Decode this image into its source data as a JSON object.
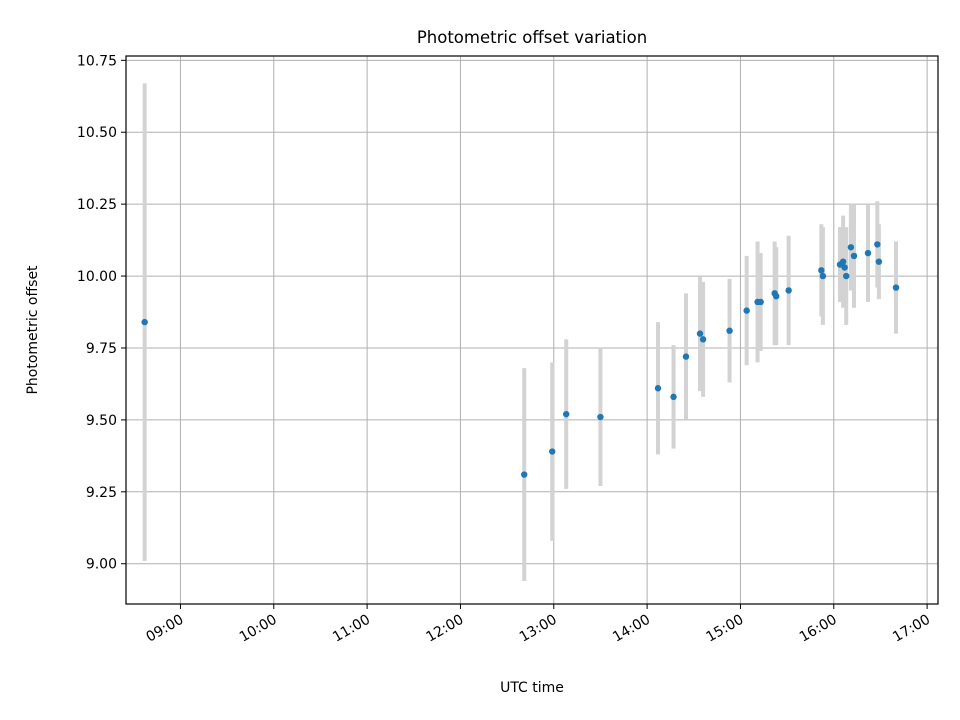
{
  "chart_data": {
    "type": "scatter",
    "title": "Photometric offset variation",
    "xlabel": "UTC time",
    "ylabel": "Photometric offset",
    "xlim": [
      "08:25",
      "17:07"
    ],
    "ylim": [
      8.86,
      10.765
    ],
    "grid": true,
    "colors": {
      "point": "#1f77b4",
      "errorbar": "#d3d3d3",
      "grid": "#b0b0b0"
    },
    "x_ticks": [
      "09:00",
      "10:00",
      "11:00",
      "12:00",
      "13:00",
      "14:00",
      "15:00",
      "16:00",
      "17:00"
    ],
    "y_ticks": [
      "9.00",
      "9.25",
      "9.50",
      "9.75",
      "10.00",
      "10.25",
      "10.50",
      "10.75"
    ],
    "points": [
      {
        "x": "08:37",
        "y": 9.84,
        "yerr": 0.83
      },
      {
        "x": "12:41",
        "y": 9.31,
        "yerr": 0.37
      },
      {
        "x": "12:59",
        "y": 9.39,
        "yerr": 0.31
      },
      {
        "x": "13:08",
        "y": 9.52,
        "yerr": 0.26
      },
      {
        "x": "13:30",
        "y": 9.51,
        "yerr": 0.24
      },
      {
        "x": "14:07",
        "y": 9.61,
        "yerr": 0.23
      },
      {
        "x": "14:17",
        "y": 9.58,
        "yerr": 0.18
      },
      {
        "x": "14:25",
        "y": 9.72,
        "yerr": 0.22
      },
      {
        "x": "14:34",
        "y": 9.8,
        "yerr": 0.2
      },
      {
        "x": "14:36",
        "y": 9.78,
        "yerr": 0.2
      },
      {
        "x": "14:53",
        "y": 9.81,
        "yerr": 0.18
      },
      {
        "x": "15:04",
        "y": 9.88,
        "yerr": 0.19
      },
      {
        "x": "15:11",
        "y": 9.91,
        "yerr": 0.21
      },
      {
        "x": "15:13",
        "y": 9.91,
        "yerr": 0.17
      },
      {
        "x": "15:22",
        "y": 9.94,
        "yerr": 0.18
      },
      {
        "x": "15:23",
        "y": 9.93,
        "yerr": 0.17
      },
      {
        "x": "15:31",
        "y": 9.95,
        "yerr": 0.19
      },
      {
        "x": "15:52",
        "y": 10.02,
        "yerr": 0.16
      },
      {
        "x": "15:53",
        "y": 10.0,
        "yerr": 0.17
      },
      {
        "x": "16:04",
        "y": 10.04,
        "yerr": 0.13
      },
      {
        "x": "16:06",
        "y": 10.05,
        "yerr": 0.16
      },
      {
        "x": "16:07",
        "y": 10.03,
        "yerr": 0.11
      },
      {
        "x": "16:08",
        "y": 10.0,
        "yerr": 0.17
      },
      {
        "x": "16:11",
        "y": 10.1,
        "yerr": 0.15
      },
      {
        "x": "16:13",
        "y": 10.07,
        "yerr": 0.18
      },
      {
        "x": "16:22",
        "y": 10.08,
        "yerr": 0.17
      },
      {
        "x": "16:28",
        "y": 10.11,
        "yerr": 0.15
      },
      {
        "x": "16:29",
        "y": 10.05,
        "yerr": 0.13
      },
      {
        "x": "16:40",
        "y": 9.96,
        "yerr": 0.16
      }
    ]
  }
}
